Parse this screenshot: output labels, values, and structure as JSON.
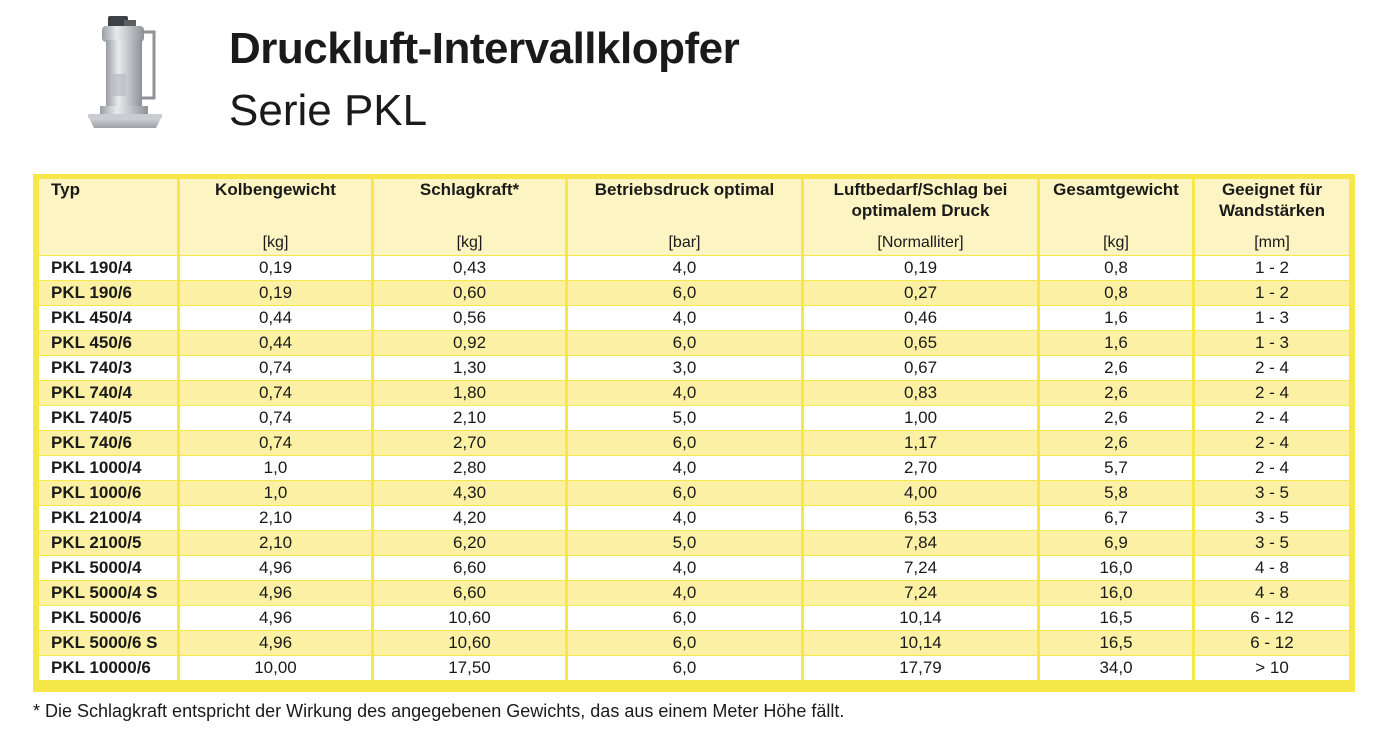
{
  "header": {
    "title": "Druckluft-Intervallklopfer",
    "subtitle": "Serie PKL"
  },
  "colors": {
    "frame": "#f7e84a",
    "header_bg": "#fcf4c2",
    "row_alt_bg": "#fcf0a4"
  },
  "table": {
    "columns": [
      "Typ",
      "Kolbengewicht",
      "Schlagkraft*",
      "Betriebsdruck optimal",
      "Luftbedarf/Schlag bei optimalem Druck",
      "Gesamtgewicht",
      "Geeignet für Wandstärken"
    ],
    "units": [
      "",
      "[kg]",
      "[kg]",
      "[bar]",
      "[Normalliter]",
      "[kg]",
      "[mm]"
    ],
    "rows": [
      [
        "PKL 190/4",
        "0,19",
        "0,43",
        "4,0",
        "0,19",
        "0,8",
        "1 - 2"
      ],
      [
        "PKL 190/6",
        "0,19",
        "0,60",
        "6,0",
        "0,27",
        "0,8",
        "1 - 2"
      ],
      [
        "PKL 450/4",
        "0,44",
        "0,56",
        "4,0",
        "0,46",
        "1,6",
        "1 - 3"
      ],
      [
        "PKL 450/6",
        "0,44",
        "0,92",
        "6,0",
        "0,65",
        "1,6",
        "1 - 3"
      ],
      [
        "PKL 740/3",
        "0,74",
        "1,30",
        "3,0",
        "0,67",
        "2,6",
        "2 - 4"
      ],
      [
        "PKL 740/4",
        "0,74",
        "1,80",
        "4,0",
        "0,83",
        "2,6",
        "2 - 4"
      ],
      [
        "PKL 740/5",
        "0,74",
        "2,10",
        "5,0",
        "1,00",
        "2,6",
        "2 - 4"
      ],
      [
        "PKL 740/6",
        "0,74",
        "2,70",
        "6,0",
        "1,17",
        "2,6",
        "2 - 4"
      ],
      [
        "PKL 1000/4",
        "1,0",
        "2,80",
        "4,0",
        "2,70",
        "5,7",
        "2 - 4"
      ],
      [
        "PKL 1000/6",
        "1,0",
        "4,30",
        "6,0",
        "4,00",
        "5,8",
        "3 - 5"
      ],
      [
        "PKL 2100/4",
        "2,10",
        "4,20",
        "4,0",
        "6,53",
        "6,7",
        "3 - 5"
      ],
      [
        "PKL 2100/5",
        "2,10",
        "6,20",
        "5,0",
        "7,84",
        "6,9",
        "3 - 5"
      ],
      [
        "PKL 5000/4",
        "4,96",
        "6,60",
        "4,0",
        "7,24",
        "16,0",
        "4 - 8"
      ],
      [
        "PKL 5000/4 S",
        "4,96",
        "6,60",
        "4,0",
        "7,24",
        "16,0",
        "4 - 8"
      ],
      [
        "PKL 5000/6",
        "4,96",
        "10,60",
        "6,0",
        "10,14",
        "16,5",
        "6 - 12"
      ],
      [
        "PKL 5000/6 S",
        "4,96",
        "10,60",
        "6,0",
        "10,14",
        "16,5",
        "6 - 12"
      ],
      [
        "PKL 10000/6",
        "10,00",
        "17,50",
        "6,0",
        "17,79",
        "34,0",
        "> 10"
      ]
    ]
  },
  "footnote": "* Die Schlagkraft entspricht der Wirkung des angegebenen Gewichts, das aus einem Meter Höhe fällt."
}
